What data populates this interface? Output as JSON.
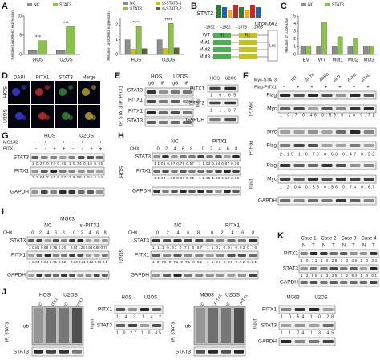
{
  "A": {
    "letter": "A",
    "chart1": {
      "type": "bar",
      "y_label": "Relative Linc00662 expression",
      "categories": [
        "HOS",
        "U2OS"
      ],
      "series": [
        {
          "name": "NC",
          "color": "#8c8c8c",
          "values": [
            1,
            1
          ]
        },
        {
          "name": "STAT3",
          "color": "#8bc34a",
          "values": [
            3.6,
            7.2
          ]
        }
      ],
      "ylim": [
        0,
        10
      ],
      "yticks": [
        0,
        5,
        10
      ],
      "stars": [
        "***",
        "***"
      ]
    },
    "chart2": {
      "type": "bar",
      "y_label": "Relative Linc00662 expression",
      "categories": [
        "HOS",
        "U2OS"
      ],
      "series": [
        {
          "name": "NC",
          "color": "#8c8c8c",
          "values": [
            1,
            1
          ]
        },
        {
          "name": "si-STAT3-1",
          "color": "#c6c21c",
          "values": [
            0.35,
            0.4
          ]
        },
        {
          "name": "STAT3",
          "color": "#8bc34a",
          "values": [
            1.9,
            2.1
          ]
        },
        {
          "name": "si-STAT3-2",
          "color": "#556b2f",
          "values": [
            0.4,
            0.45
          ]
        }
      ],
      "ylim": [
        0,
        2.5
      ],
      "yticks": [
        0,
        1,
        2
      ],
      "stars": [
        "****",
        "****"
      ]
    }
  },
  "B": {
    "letter": "B",
    "motif_title": "STAT3",
    "positions": [
      "-1992",
      "-1982",
      "-1875",
      "-1865"
    ],
    "gene": "Linc00662",
    "rows": [
      "WT",
      "Mut1",
      "Mut2",
      "Mut3"
    ],
    "regions": [
      "R1",
      "R2"
    ],
    "reporter": "Luc"
  },
  "C": {
    "letter": "C",
    "chart": {
      "type": "bar",
      "y_label": "Relative of Luciferase",
      "categories": [
        "EV",
        "WT",
        "Mut1",
        "Mut2",
        "Mut3"
      ],
      "series": [
        {
          "name": "NC",
          "color": "#8c8c8c",
          "values": [
            1,
            1,
            1,
            1,
            1
          ]
        },
        {
          "name": "STAT3",
          "color": "#8bc34a",
          "values": [
            1.1,
            4.2,
            2.3,
            2.1,
            1.1
          ]
        }
      ],
      "ylim": [
        0,
        5
      ],
      "yticks": [
        0,
        1,
        2,
        3,
        4,
        5
      ]
    }
  },
  "D": {
    "letter": "D",
    "channels": [
      "DAPI",
      "PITX1",
      "STAT3",
      "Merge"
    ],
    "rows": [
      "HOS",
      "U2OS"
    ]
  },
  "E": {
    "letter": "E",
    "cells": [
      "HOS",
      "U2OS"
    ],
    "lanes": [
      "IgG",
      "IP",
      "IgG",
      "IP"
    ],
    "ip_labels": [
      "IP: PITX1",
      "IP: STAT3"
    ],
    "blot_labels": [
      "STAT3",
      "PITX1",
      "PITX1",
      "STAT3"
    ],
    "input_cells": [
      "HOS",
      "U2OS"
    ],
    "input_blots": [
      "PITX1",
      "STAT3",
      "GAPDH"
    ],
    "input_values": [
      "1  0.65",
      "1  1.37"
    ],
    "input_label": "Input"
  },
  "F": {
    "letter": "F",
    "rows_head": [
      "Myc-STAT3",
      "Flag-PITX1"
    ],
    "lanes": [
      "WT",
      "ΔNTD",
      "ΔDBD",
      "ΔLD",
      "ΔSH2",
      "ΔTAD"
    ],
    "signs": [
      "-",
      "+",
      "+",
      "+",
      "+",
      "+",
      "+"
    ],
    "blots": [
      "Flag",
      "Myc",
      "Myc",
      "Flag",
      "Flag",
      "Myc",
      "GAPDH"
    ],
    "groups": [
      "IP: Myc",
      "IP: Flag",
      "Input"
    ],
    "quant": [
      "1  0.7  0.46  0.59  0.28  0.71",
      "2.15  1  0.76  0.63  0.47  0.22",
      "1  2.04  0.35  0.56  0.74  0.67"
    ]
  },
  "G": {
    "letter": "G",
    "cells": [
      "HOS",
      "U2OS"
    ],
    "treat": [
      "MG132",
      "PITX1"
    ],
    "signs": [
      [
        "-",
        "+",
        "-",
        "+",
        "-",
        "+",
        "-",
        "+"
      ],
      [
        "-",
        "-",
        "+",
        "+",
        "-",
        "-",
        "+",
        "+"
      ]
    ],
    "blots": [
      "STAT3",
      "PITX1",
      "GAPDH"
    ],
    "quant": [
      [
        "1  0.27  0.74  0.45",
        "1  0.74  0.15  0.45"
      ],
      [
        "1  7.64  2.51  6.57",
        "1  8.58  1.54  4.54"
      ]
    ]
  },
  "H": {
    "letter": "H",
    "cell": "HOS",
    "treat": "CHX",
    "times": [
      "0",
      "2",
      "4",
      "6",
      "8"
    ],
    "groups": [
      "NC",
      "PITX1"
    ],
    "blots": [
      "STAT3",
      "PITX1",
      "GAPDH"
    ],
    "quant": [
      [
        "1  1.05  0.87  0.75  0.57",
        "1  1.02  0.94  0.87  0.79"
      ],
      [
        "1  1.14  1.08  0.96  0.91",
        "1  1.15  1.03  1.14  0.96"
      ]
    ]
  },
  "I": {
    "letter": "I",
    "cell": "MG63",
    "treat": "CHX",
    "times": [
      "0",
      "2",
      "4",
      "6",
      "8"
    ],
    "groups": [
      "NC",
      "si-PITX1"
    ],
    "blots": [
      "STAT3",
      "PITX1",
      "GAPDH"
    ],
    "quant": [
      [
        "1  0.81  0.66  0.75  0.26",
        "2.94  1.28  0.94  0.68  0.77"
      ],
      [
        "1  0.94  0.84  0.71  0.52",
        "0.14  0.11  0.12  0.09  0.1"
      ]
    ],
    "u2os": {
      "cell": "U2OS",
      "treat": "CHX",
      "times": [
        "0",
        "2",
        "4",
        "6",
        "8"
      ],
      "groups": [
        "NC",
        "PITX1"
      ],
      "blots": [
        "STAT3",
        "PITX1",
        "GAPDH"
      ],
      "quant": [
        [
          "1  1.1  0.93  0.78  0.67",
          "1  1.02  0.94  0.82  0.76"
        ],
        [
          "1  0.78  0.76  0.71  0.82",
          "1  1.03  0.95  0.92  0.81"
        ]
      ]
    }
  },
  "J": {
    "letter": "J",
    "left": {
      "cells": [
        "HOS",
        "U2OS"
      ],
      "lanes": [
        "NC",
        "PITX1",
        "NC",
        "PITX1"
      ],
      "ip": "IP: STAT3",
      "blots": [
        "ub",
        "STAT3"
      ],
      "input_cells": [
        "HOS",
        "U2OS"
      ],
      "input_blots": [
        "PITX1",
        "STAT3"
      ],
      "input_quant": [
        "1  4.3  1  4.2",
        "1  0.27  1  0.45"
      ],
      "input": "Input"
    },
    "right": {
      "cells": [
        "MG63",
        "U2OS"
      ],
      "lanes": [
        "NC",
        "si-PITX1",
        "NC",
        "si-PITX1"
      ],
      "ip": "IP: STAT3",
      "blots": [
        "ub",
        "STAT3"
      ],
      "input_cells": [
        "MG63",
        "U2OS"
      ],
      "input_blots": [
        "PITX1",
        "STAT3",
        "GAPDH"
      ],
      "input_quant": [
        "1  0.54  1  0.28",
        "1  1.74  1  3.45"
      ],
      "input": "Input"
    }
  },
  "K": {
    "letter": "K",
    "cases": [
      "Case 1",
      "Case 2",
      "Case 3",
      "Case 4"
    ],
    "lanes": [
      "N",
      "T"
    ],
    "blots": [
      "PITX1",
      "STAT3",
      "GAPDH"
    ],
    "quant": [
      "1  0.31  1  0.28  1  0.46  1  0.33",
      "1  2.95  1  3.35  1  2.84  1  3.01"
    ]
  }
}
